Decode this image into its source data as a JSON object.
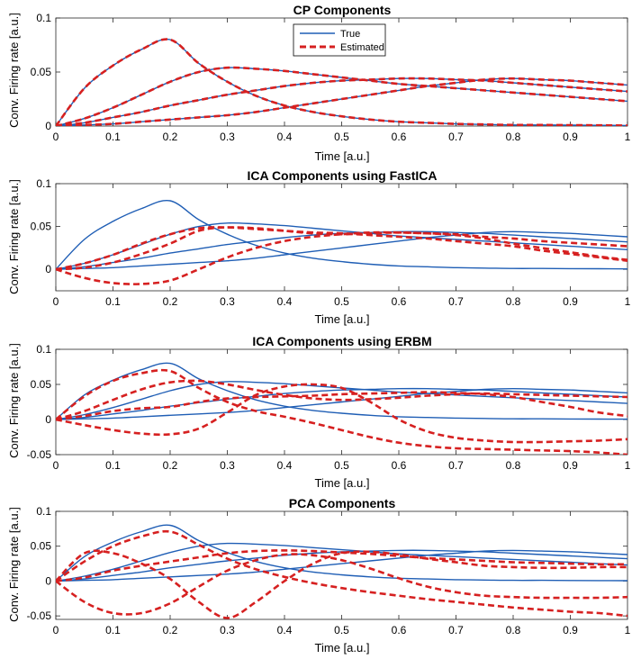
{
  "chart_data": [
    {
      "type": "line",
      "title": "CP Components",
      "xlabel": "Time [a.u.]",
      "ylabel": "Conv. Firing rate [a.u.]",
      "xlim": [
        0,
        1
      ],
      "ylim": [
        0,
        0.1
      ],
      "xticks": [
        "0",
        "0.1",
        "0.2",
        "0.3",
        "0.4",
        "0.5",
        "0.6",
        "0.7",
        "0.8",
        "0.9",
        "1"
      ],
      "yticks": [
        "0",
        "0.05",
        "0.1"
      ],
      "legend": {
        "position": "top-center",
        "true_label": "True",
        "estimated_label": "Estimated"
      },
      "x": [
        0,
        0.05,
        0.1,
        0.15,
        0.2,
        0.25,
        0.3,
        0.35,
        0.4,
        0.45,
        0.5,
        0.55,
        0.6,
        0.65,
        0.7,
        0.75,
        0.8,
        0.85,
        0.9,
        0.95,
        1.0
      ],
      "series": [
        {
          "name": "True",
          "values": [
            0,
            0.035,
            0.056,
            0.071,
            0.08,
            0.058,
            0.041,
            0.028,
            0.019,
            0.013,
            0.009,
            0.006,
            0.004,
            0.003,
            0.002,
            0.0015,
            0.001,
            0.001,
            0.0008,
            0.0007,
            0.0005
          ]
        },
        {
          "name": "True",
          "values": [
            0,
            0.007,
            0.017,
            0.029,
            0.041,
            0.05,
            0.054,
            0.053,
            0.051,
            0.048,
            0.045,
            0.042,
            0.039,
            0.037,
            0.035,
            0.033,
            0.031,
            0.029,
            0.027,
            0.025,
            0.023
          ]
        },
        {
          "name": "True",
          "values": [
            0,
            0.003,
            0.008,
            0.013,
            0.019,
            0.024,
            0.029,
            0.033,
            0.037,
            0.04,
            0.042,
            0.043,
            0.044,
            0.044,
            0.043,
            0.042,
            0.04,
            0.038,
            0.036,
            0.034,
            0.032
          ]
        },
        {
          "name": "True",
          "values": [
            0,
            0.001,
            0.002,
            0.004,
            0.006,
            0.008,
            0.01,
            0.013,
            0.017,
            0.021,
            0.025,
            0.029,
            0.033,
            0.037,
            0.04,
            0.043,
            0.044,
            0.043,
            0.042,
            0.04,
            0.038
          ]
        },
        {
          "name": "Estimated",
          "values": [
            0,
            0.035,
            0.056,
            0.071,
            0.08,
            0.058,
            0.041,
            0.028,
            0.019,
            0.013,
            0.009,
            0.006,
            0.004,
            0.003,
            0.002,
            0.0015,
            0.001,
            0.001,
            0.0008,
            0.0007,
            0.0005
          ]
        },
        {
          "name": "Estimated",
          "values": [
            0,
            0.007,
            0.017,
            0.029,
            0.041,
            0.05,
            0.054,
            0.053,
            0.051,
            0.048,
            0.045,
            0.042,
            0.039,
            0.037,
            0.035,
            0.033,
            0.031,
            0.029,
            0.027,
            0.025,
            0.023
          ]
        },
        {
          "name": "Estimated",
          "values": [
            0,
            0.003,
            0.008,
            0.013,
            0.019,
            0.024,
            0.029,
            0.033,
            0.037,
            0.04,
            0.042,
            0.043,
            0.044,
            0.044,
            0.043,
            0.042,
            0.04,
            0.038,
            0.036,
            0.034,
            0.032
          ]
        },
        {
          "name": "Estimated",
          "values": [
            0,
            0.001,
            0.002,
            0.004,
            0.006,
            0.008,
            0.01,
            0.013,
            0.017,
            0.021,
            0.025,
            0.029,
            0.033,
            0.037,
            0.04,
            0.043,
            0.044,
            0.043,
            0.042,
            0.04,
            0.038
          ]
        }
      ]
    },
    {
      "type": "line",
      "title": "ICA Components using FastICA",
      "xlabel": "Time [a.u.]",
      "ylabel": "Conv. Firing rate [a.u.]",
      "xlim": [
        0,
        1
      ],
      "ylim": [
        -0.025,
        0.1
      ],
      "xticks": [
        "0",
        "0.1",
        "0.2",
        "0.3",
        "0.4",
        "0.5",
        "0.6",
        "0.7",
        "0.8",
        "0.9",
        "1"
      ],
      "yticks": [
        "0",
        "0.05",
        "0.1"
      ],
      "x": [
        0,
        0.05,
        0.1,
        0.15,
        0.2,
        0.25,
        0.3,
        0.35,
        0.4,
        0.45,
        0.5,
        0.55,
        0.6,
        0.65,
        0.7,
        0.75,
        0.8,
        0.85,
        0.9,
        0.95,
        1.0
      ],
      "series": [
        {
          "name": "True",
          "values": [
            0,
            0.035,
            0.056,
            0.071,
            0.08,
            0.058,
            0.041,
            0.028,
            0.019,
            0.013,
            0.009,
            0.006,
            0.004,
            0.003,
            0.002,
            0.0015,
            0.001,
            0.001,
            0.0008,
            0.0007,
            0.0005
          ]
        },
        {
          "name": "True",
          "values": [
            0,
            0.007,
            0.017,
            0.029,
            0.041,
            0.05,
            0.054,
            0.053,
            0.051,
            0.048,
            0.045,
            0.042,
            0.039,
            0.037,
            0.035,
            0.033,
            0.031,
            0.029,
            0.027,
            0.025,
            0.023
          ]
        },
        {
          "name": "True",
          "values": [
            0,
            0.003,
            0.008,
            0.013,
            0.019,
            0.024,
            0.029,
            0.033,
            0.037,
            0.04,
            0.042,
            0.043,
            0.044,
            0.044,
            0.043,
            0.042,
            0.04,
            0.038,
            0.036,
            0.034,
            0.032
          ]
        },
        {
          "name": "True",
          "values": [
            0,
            0.001,
            0.002,
            0.004,
            0.006,
            0.008,
            0.01,
            0.013,
            0.017,
            0.021,
            0.025,
            0.029,
            0.033,
            0.037,
            0.04,
            0.043,
            0.044,
            0.043,
            0.042,
            0.04,
            0.038
          ]
        },
        {
          "name": "Estimated",
          "values": [
            0,
            0.007,
            0.017,
            0.03,
            0.041,
            0.048,
            0.049,
            0.047,
            0.045,
            0.043,
            0.042,
            0.04,
            0.038,
            0.036,
            0.033,
            0.03,
            0.027,
            0.022,
            0.018,
            0.014,
            0.01
          ]
        },
        {
          "name": "Estimated",
          "values": [
            0,
            0.002,
            0.008,
            0.018,
            0.03,
            0.045,
            0.049,
            0.048,
            0.045,
            0.042,
            0.041,
            0.042,
            0.043,
            0.042,
            0.04,
            0.036,
            0.03,
            0.025,
            0.02,
            0.015,
            0.011
          ]
        },
        {
          "name": "Estimated",
          "values": [
            0,
            -0.01,
            -0.016,
            -0.017,
            -0.013,
            0,
            0.014,
            0.025,
            0.033,
            0.038,
            0.041,
            0.043,
            0.043,
            0.042,
            0.041,
            0.038,
            0.036,
            0.033,
            0.031,
            0.029,
            0.027
          ]
        }
      ]
    },
    {
      "type": "line",
      "title": "ICA Components using ERBM",
      "xlabel": "Time [a.u.]",
      "ylabel": "Conv. Firing rate [a.u.]",
      "xlim": [
        0,
        1
      ],
      "ylim": [
        -0.05,
        0.1
      ],
      "xticks": [
        "0",
        "0.1",
        "0.2",
        "0.3",
        "0.4",
        "0.5",
        "0.6",
        "0.7",
        "0.8",
        "0.9",
        "1"
      ],
      "yticks": [
        "-0.05",
        "0",
        "0.05",
        "0.1"
      ],
      "x": [
        0,
        0.05,
        0.1,
        0.15,
        0.2,
        0.25,
        0.3,
        0.35,
        0.4,
        0.45,
        0.5,
        0.55,
        0.6,
        0.65,
        0.7,
        0.75,
        0.8,
        0.85,
        0.9,
        0.95,
        1.0
      ],
      "series": [
        {
          "name": "True",
          "values": [
            0,
            0.035,
            0.056,
            0.071,
            0.08,
            0.058,
            0.041,
            0.028,
            0.019,
            0.013,
            0.009,
            0.006,
            0.004,
            0.003,
            0.002,
            0.0015,
            0.001,
            0.001,
            0.0008,
            0.0007,
            0.0005
          ]
        },
        {
          "name": "True",
          "values": [
            0,
            0.007,
            0.017,
            0.029,
            0.041,
            0.05,
            0.054,
            0.053,
            0.051,
            0.048,
            0.045,
            0.042,
            0.039,
            0.037,
            0.035,
            0.033,
            0.031,
            0.029,
            0.027,
            0.025,
            0.023
          ]
        },
        {
          "name": "True",
          "values": [
            0,
            0.003,
            0.008,
            0.013,
            0.019,
            0.024,
            0.029,
            0.033,
            0.037,
            0.04,
            0.042,
            0.043,
            0.044,
            0.044,
            0.043,
            0.042,
            0.04,
            0.038,
            0.036,
            0.034,
            0.032
          ]
        },
        {
          "name": "True",
          "values": [
            0,
            0.001,
            0.002,
            0.004,
            0.006,
            0.008,
            0.01,
            0.013,
            0.017,
            0.021,
            0.025,
            0.029,
            0.033,
            0.037,
            0.04,
            0.043,
            0.044,
            0.043,
            0.042,
            0.04,
            0.038
          ]
        },
        {
          "name": "Estimated",
          "values": [
            0,
            0.033,
            0.055,
            0.066,
            0.069,
            0.045,
            0.025,
            0.012,
            0.004,
            -0.005,
            -0.015,
            -0.025,
            -0.033,
            -0.038,
            -0.041,
            -0.042,
            -0.043,
            -0.044,
            -0.045,
            -0.047,
            -0.05
          ]
        },
        {
          "name": "Estimated",
          "values": [
            0,
            0.012,
            0.028,
            0.043,
            0.053,
            0.055,
            0.05,
            0.042,
            0.035,
            0.03,
            0.028,
            0.029,
            0.031,
            0.034,
            0.036,
            0.037,
            0.036,
            0.035,
            0.034,
            0.033,
            0.032
          ]
        },
        {
          "name": "Estimated",
          "values": [
            0,
            0.005,
            0.012,
            0.016,
            0.018,
            0.025,
            0.03,
            0.032,
            0.033,
            0.034,
            0.036,
            0.037,
            0.038,
            0.039,
            0.038,
            0.036,
            0.032,
            0.025,
            0.018,
            0.01,
            0.005
          ]
        },
        {
          "name": "Estimated",
          "values": [
            0,
            -0.008,
            -0.015,
            -0.02,
            -0.021,
            -0.013,
            0.01,
            0.035,
            0.047,
            0.05,
            0.045,
            0.025,
            0.0,
            -0.017,
            -0.026,
            -0.03,
            -0.032,
            -0.032,
            -0.031,
            -0.03,
            -0.028
          ]
        }
      ]
    },
    {
      "type": "line",
      "title": "PCA Components",
      "xlabel": "Time [a.u.]",
      "ylabel": "Conv. Firing rate [a.u.]",
      "xlim": [
        0,
        1
      ],
      "ylim": [
        -0.055,
        0.1
      ],
      "xticks": [
        "0",
        "0.1",
        "0.2",
        "0.3",
        "0.4",
        "0.5",
        "0.6",
        "0.7",
        "0.8",
        "0.9",
        "1"
      ],
      "yticks": [
        "-0.05",
        "0",
        "0.05",
        "0.1"
      ],
      "x": [
        0,
        0.05,
        0.1,
        0.15,
        0.2,
        0.25,
        0.3,
        0.35,
        0.4,
        0.45,
        0.5,
        0.55,
        0.6,
        0.65,
        0.7,
        0.75,
        0.8,
        0.85,
        0.9,
        0.95,
        1.0
      ],
      "series": [
        {
          "name": "True",
          "values": [
            0,
            0.035,
            0.056,
            0.071,
            0.08,
            0.058,
            0.041,
            0.028,
            0.019,
            0.013,
            0.009,
            0.006,
            0.004,
            0.003,
            0.002,
            0.0015,
            0.001,
            0.001,
            0.0008,
            0.0007,
            0.0005
          ]
        },
        {
          "name": "True",
          "values": [
            0,
            0.007,
            0.017,
            0.029,
            0.041,
            0.05,
            0.054,
            0.053,
            0.051,
            0.048,
            0.045,
            0.042,
            0.039,
            0.037,
            0.035,
            0.033,
            0.031,
            0.029,
            0.027,
            0.025,
            0.023
          ]
        },
        {
          "name": "True",
          "values": [
            0,
            0.003,
            0.008,
            0.013,
            0.019,
            0.024,
            0.029,
            0.033,
            0.037,
            0.04,
            0.042,
            0.043,
            0.044,
            0.044,
            0.043,
            0.042,
            0.04,
            0.038,
            0.036,
            0.034,
            0.032
          ]
        },
        {
          "name": "True",
          "values": [
            0,
            0.001,
            0.002,
            0.004,
            0.006,
            0.008,
            0.01,
            0.013,
            0.017,
            0.021,
            0.025,
            0.029,
            0.033,
            0.037,
            0.04,
            0.043,
            0.044,
            0.043,
            0.042,
            0.04,
            0.038
          ]
        },
        {
          "name": "Estimated",
          "values": [
            0,
            0.028,
            0.05,
            0.064,
            0.071,
            0.052,
            0.032,
            0.017,
            0.006,
            -0.003,
            -0.01,
            -0.016,
            -0.021,
            -0.026,
            -0.03,
            -0.034,
            -0.038,
            -0.041,
            -0.044,
            -0.046,
            -0.05
          ]
        },
        {
          "name": "Estimated",
          "values": [
            0,
            0.04,
            0.04,
            0.025,
            0.003,
            -0.03,
            -0.053,
            -0.03,
            0.0,
            0.025,
            0.04,
            0.042,
            0.038,
            0.032,
            0.027,
            0.022,
            0.02,
            0.019,
            0.019,
            0.02,
            0.02
          ]
        },
        {
          "name": "Estimated",
          "values": [
            0,
            0.005,
            0.015,
            0.022,
            0.028,
            0.034,
            0.04,
            0.043,
            0.044,
            0.043,
            0.041,
            0.039,
            0.036,
            0.033,
            0.031,
            0.029,
            0.027,
            0.026,
            0.025,
            0.024,
            0.024
          ]
        },
        {
          "name": "Estimated",
          "values": [
            0,
            -0.03,
            -0.046,
            -0.046,
            -0.032,
            -0.008,
            0.015,
            0.03,
            0.038,
            0.037,
            0.03,
            0.018,
            0.004,
            -0.008,
            -0.016,
            -0.021,
            -0.023,
            -0.024,
            -0.024,
            -0.024,
            -0.023
          ]
        }
      ]
    }
  ],
  "colors": {
    "true": "#1f5eb5",
    "estimated": "#d62020"
  }
}
